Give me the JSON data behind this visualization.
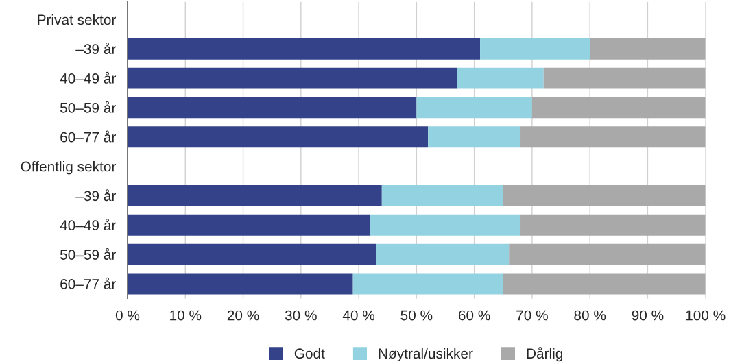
{
  "chart_data": {
    "type": "bar",
    "orientation": "horizontal",
    "stacked": true,
    "categories": [
      "Privat sektor",
      "–39 år",
      "40–49 år",
      "50–59 år",
      "60–77 år",
      "Offentlig sektor",
      "–39 år",
      "40–49 år",
      "50–59 år",
      "60–77 år"
    ],
    "series": [
      {
        "name": "Godt",
        "color": "#334289",
        "values": [
          null,
          61,
          57,
          50,
          52,
          null,
          44,
          42,
          43,
          39
        ]
      },
      {
        "name": "Nøytral/usikker",
        "color": "#93d2e0",
        "values": [
          null,
          19,
          15,
          20,
          16,
          null,
          21,
          26,
          23,
          26
        ]
      },
      {
        "name": "Dårlig",
        "color": "#aaa9aa",
        "values": [
          null,
          20,
          28,
          30,
          32,
          null,
          35,
          32,
          34,
          35
        ]
      }
    ],
    "xlim": [
      0,
      100
    ],
    "xticks": [
      {
        "value": 0,
        "label": "0 %"
      },
      {
        "value": 10,
        "label": "10 %"
      },
      {
        "value": 20,
        "label": "20 %"
      },
      {
        "value": 30,
        "label": "30 %"
      },
      {
        "value": 40,
        "label": "40 %"
      },
      {
        "value": 50,
        "label": "50 %"
      },
      {
        "value": 60,
        "label": "60 %"
      },
      {
        "value": 70,
        "label": "70 %"
      },
      {
        "value": 80,
        "label": "80 %"
      },
      {
        "value": 90,
        "label": "90 %"
      },
      {
        "value": 100,
        "label": "100 %"
      }
    ],
    "grid": "x",
    "legend": "bottom"
  }
}
